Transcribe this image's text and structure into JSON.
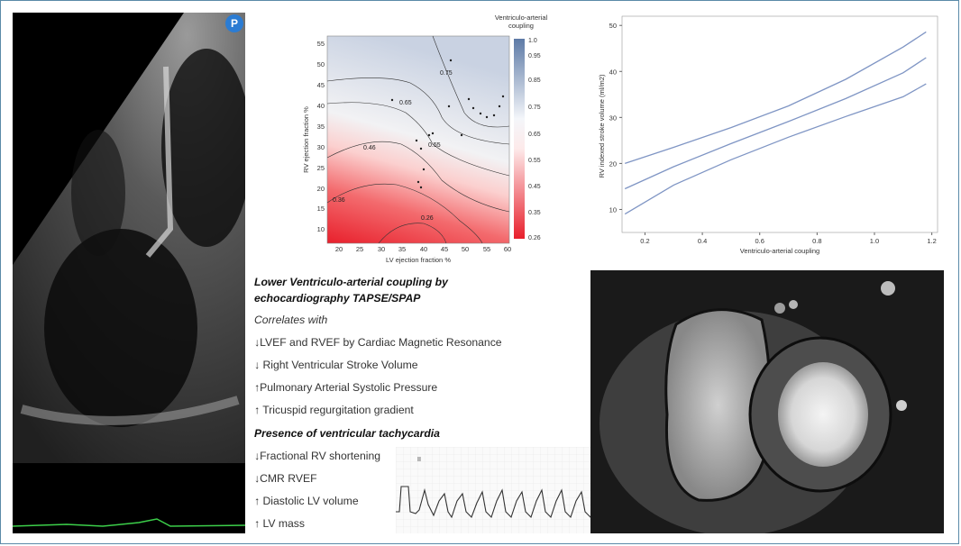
{
  "echo": {
    "badge": "P"
  },
  "contour_plot": {
    "xlabel": "LV ejection fraction %",
    "ylabel": "RV ejection fraction %",
    "colorbar_title_line1": "Ventriculo-arterial",
    "colorbar_title_line2": "coupling",
    "x_ticks": [
      "20",
      "25",
      "30",
      "35",
      "40",
      "45",
      "50",
      "55",
      "60"
    ],
    "y_ticks": [
      "10",
      "15",
      "20",
      "25",
      "30",
      "35",
      "40",
      "45",
      "50",
      "55"
    ],
    "colorbar_ticks": [
      "1.0",
      "0.95",
      "0.85",
      "0.75",
      "0.65",
      "0.55",
      "0.45",
      "0.35",
      "0.26"
    ],
    "contour_labels": [
      "0.75",
      "0.65",
      "0.55",
      "0.46",
      "0.36",
      "0.26"
    ],
    "colors": {
      "high": "#c9d2e2",
      "low": "#e8202c"
    }
  },
  "chart_data": {
    "type": "line",
    "xlabel": "Ventriculo-arterial coupling",
    "ylabel": "RV indexed stroke volume (ml/m2)",
    "x_ticks": [
      "0.2",
      "0.4",
      "0.6",
      "0.8",
      "1.0",
      "1.2"
    ],
    "y_ticks": [
      "10",
      "20",
      "30",
      "40",
      "50"
    ],
    "xlim": [
      0.12,
      1.22
    ],
    "ylim": [
      5,
      52
    ],
    "series": [
      {
        "x": [
          0.13,
          0.3,
          0.5,
          0.7,
          0.9,
          1.1,
          1.18
        ],
        "y": [
          20,
          23.5,
          27.8,
          32.5,
          38.3,
          45.3,
          48.6
        ]
      },
      {
        "x": [
          0.13,
          0.3,
          0.5,
          0.7,
          0.9,
          1.1,
          1.18
        ],
        "y": [
          14.5,
          19.3,
          24.3,
          29.1,
          34.1,
          39.7,
          43
        ]
      },
      {
        "x": [
          0.13,
          0.3,
          0.5,
          0.7,
          0.9,
          1.1,
          1.18
        ],
        "y": [
          9,
          15.3,
          20.8,
          25.7,
          30.2,
          34.5,
          37.3
        ]
      }
    ],
    "line_color": "#7f95c4"
  },
  "findings": {
    "heading1_line1": "Lower Ventriculo-arterial coupling by",
    "heading1_line2": "echocardiography TAPSE/SPAP",
    "correlates": "Correlates with",
    "item1": "↓LVEF and RVEF by Cardiac Magnetic Resonance",
    "item2": "↓ Right Ventricular Stroke Volume",
    "item3": "↑Pulmonary Arterial Systolic Pressure",
    "item4": "↑ Tricuspid regurgitation gradient",
    "heading2": "Presence of ventricular  tachycardia",
    "item5": "↓Fractional RV shortening",
    "item6": "↓CMR RVEF",
    "item7": "↑ Diastolic LV volume",
    "item8": "↑ LV mass"
  },
  "ecg": {
    "lead_label": "II"
  }
}
